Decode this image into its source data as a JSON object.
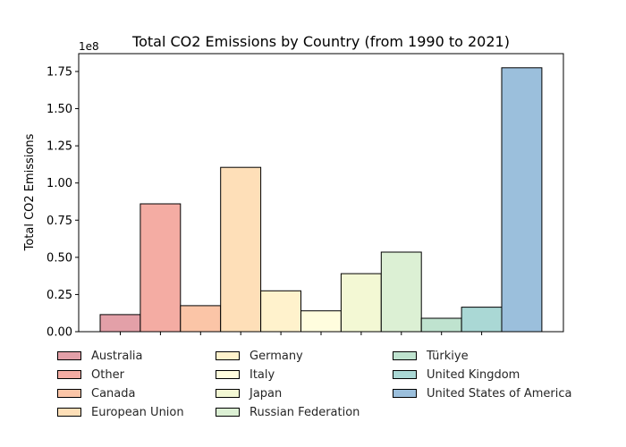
{
  "chart_data": {
    "type": "bar",
    "title": "Total CO2 Emissions by Country (from 1990 to 2021)",
    "xlabel": "",
    "ylabel": "Total CO2 Emissions",
    "offset_label": "1e8",
    "ylim": [
      0,
      187000000
    ],
    "yticks": [
      0,
      25000000,
      50000000,
      75000000,
      100000000,
      125000000,
      150000000,
      175000000
    ],
    "ytick_labels": [
      "0.00",
      "0.25",
      "0.50",
      "0.75",
      "1.00",
      "1.25",
      "1.50",
      "1.75"
    ],
    "categories": [
      "Australia",
      "Other",
      "Canada",
      "European Union",
      "Germany",
      "Italy",
      "Japan",
      "Russian Federation",
      "Türkiye",
      "United Kingdom",
      "United States of America"
    ],
    "values": [
      11500000,
      86000000,
      17500000,
      110500000,
      27500000,
      14000000,
      39000000,
      53500000,
      9000000,
      16500000,
      177500000
    ],
    "colors": [
      "#e3a0a8",
      "#f4aca3",
      "#fbc5a7",
      "#fedfb8",
      "#fff2cc",
      "#fffdde",
      "#f3f8d4",
      "#dcf0d4",
      "#bfe3cf",
      "#aad8d5",
      "#9bbfdc"
    ],
    "grid": false,
    "legend_position": "below"
  }
}
